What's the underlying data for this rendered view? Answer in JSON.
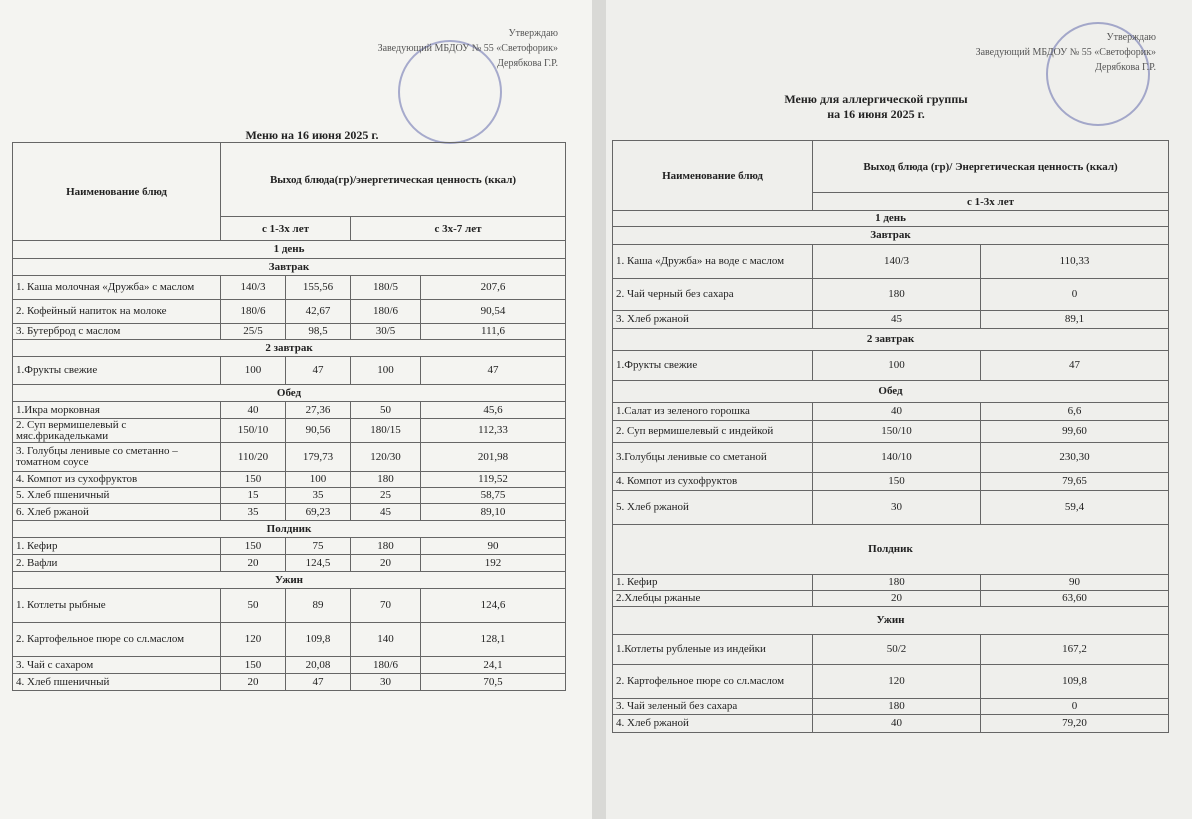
{
  "documents": [
    {
      "approval": [
        "Утверждаю",
        "Заведующий МБДОУ № 55 «Светофорик»",
        "Дерябкова Г.Р."
      ],
      "title": [
        "Меню на 16 июня 2025 г."
      ],
      "table": {
        "headers": [
          "Наименование блюд",
          "Выход блюда(гр)/энергетическая ценность (ккал)"
        ],
        "age_groups": [
          "с 1-3х лет",
          "с 3х-7 лет"
        ],
        "rows": [
          [
            "1 день"
          ],
          [
            "Завтрак"
          ],
          [
            "1. Каша молочная «Дружба» с маслом",
            "140/3",
            "155,56",
            "180/5",
            "207,6"
          ],
          [
            "2. Кофейный напиток на молоке",
            "180/6",
            "42,67",
            "180/6",
            "90,54"
          ],
          [
            "3. Бутерброд с маслом",
            "25/5",
            "98,5",
            "30/5",
            "111,6"
          ],
          [
            "2 завтрак"
          ],
          [
            "1.Фрукты свежие",
            "100",
            "47",
            "100",
            "47"
          ],
          [
            "Обед"
          ],
          [
            "1.Икра морковная",
            "40",
            "27,36",
            "50",
            "45,6"
          ],
          [
            "2. Суп вермишелевый с мяс.фрикадельками",
            "150/10",
            "90,56",
            "180/15",
            "112,33"
          ],
          [
            "3. Голубцы ленивые со сметанно –томатном соусе",
            "110/20",
            "179,73",
            "120/30",
            "201,98"
          ],
          [
            "4. Компот из сухофруктов",
            "150",
            "100",
            "180",
            "119,52"
          ],
          [
            "5. Хлеб пшеничный",
            "15",
            "35",
            "25",
            "58,75"
          ],
          [
            "6. Хлеб ржаной",
            "35",
            "69,23",
            "45",
            "89,10"
          ],
          [
            "Полдник"
          ],
          [
            "1. Кефир",
            "150",
            "75",
            "180",
            "90"
          ],
          [
            "2. Вафли",
            "20",
            "124,5",
            "20",
            "192"
          ],
          [
            "Ужин"
          ],
          [
            "1. Котлеты рыбные",
            "50",
            "89",
            "70",
            "124,6"
          ],
          [
            "2. Картофельное пюре со сл.маслом",
            "120",
            "109,8",
            "140",
            "128,1"
          ],
          [
            "3. Чай с сахаром",
            "150",
            "20,08",
            "180/6",
            "24,1"
          ],
          [
            "4. Хлеб пшеничный",
            "20",
            "47",
            "30",
            "70,5"
          ]
        ]
      }
    },
    {
      "approval": [
        "Утверждаю",
        "Заведующий МБДОУ № 55 «Светофорик»",
        "Дерябкова Г.Р."
      ],
      "title": [
        "Меню для аллергической группы",
        "на 16 июня 2025 г."
      ],
      "table": {
        "headers": [
          "Наименование блюд",
          "Выход блюда (гр)/ Энергетическая ценность (ккал)"
        ],
        "age_groups": [
          "с 1-3х лет"
        ],
        "rows": [
          [
            "1 день"
          ],
          [
            "Завтрак"
          ],
          [
            "1. Каша «Дружба» на воде с маслом",
            "140/3",
            "110,33"
          ],
          [
            "2. Чай черный без сахара",
            "180",
            "0"
          ],
          [
            "3. Хлеб ржаной",
            "45",
            "89,1"
          ],
          [
            "2 завтрак"
          ],
          [
            "1.Фрукты свежие",
            "100",
            "47"
          ],
          [
            "Обед"
          ],
          [
            "1.Салат из зеленого горошка",
            "40",
            "6,6"
          ],
          [
            "2. Суп вермишелевый с индейкой",
            "150/10",
            "99,60"
          ],
          [
            "3.Голубцы ленивые со сметаной",
            "140/10",
            "230,30"
          ],
          [
            "4. Компот из сухофруктов",
            "150",
            "79,65"
          ],
          [
            "5. Хлеб ржаной",
            "30",
            "59,4"
          ],
          [
            "Полдник"
          ],
          [
            "1. Кефир",
            "180",
            "90"
          ],
          [
            "2.Хлебцы ржаные",
            "20",
            "63,60"
          ],
          [
            "Ужин"
          ],
          [
            "1.Котлеты рубленые из индейки",
            "50/2",
            "167,2"
          ],
          [
            "2. Картофельное пюре со сл.маслом",
            "120",
            "109,8"
          ],
          [
            "3. Чай зеленый без сахара",
            "180",
            "0"
          ],
          [
            "4. Хлеб ржаной",
            "40",
            "79,20"
          ]
        ]
      }
    }
  ]
}
